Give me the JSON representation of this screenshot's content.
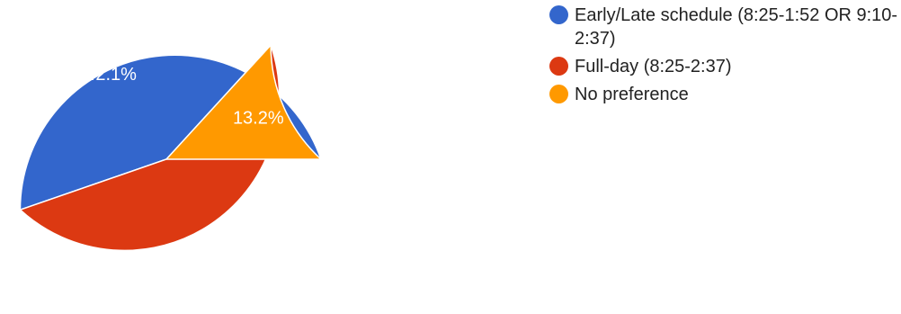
{
  "chart_data": {
    "type": "pie",
    "slices": [
      {
        "label": "Early/Late schedule (8:25-1:52 OR 9:10-2:37)",
        "value": 44.7,
        "display": "44.7%",
        "color": "#3366cc"
      },
      {
        "label": "Full-day (8:25-2:37)",
        "value": 42.1,
        "display": "42.1%",
        "color": "#dc3912"
      },
      {
        "label": "No preference",
        "value": 13.2,
        "display": "13.2%",
        "color": "#ff9900"
      }
    ],
    "legend_position": "right"
  }
}
